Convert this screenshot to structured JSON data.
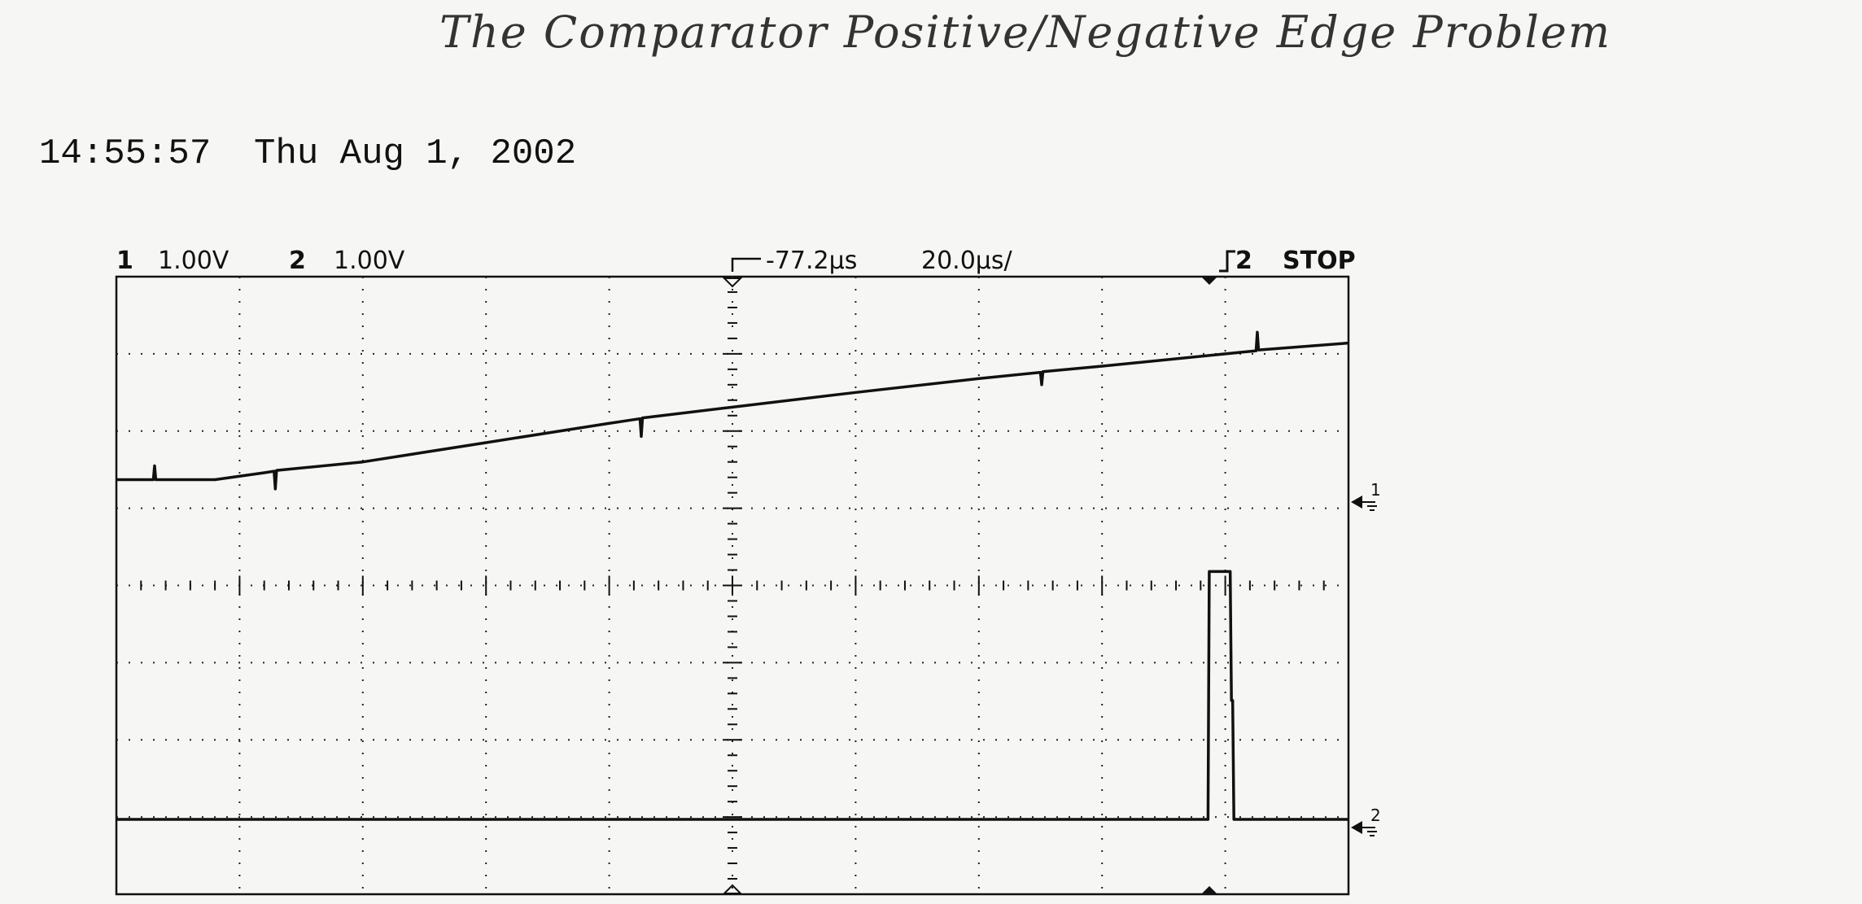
{
  "chart_data": {
    "type": "line",
    "title": "The Comparator Positive/Negative Edge Problem",
    "timestamp": "14:55:57  Thu Aug 1, 2002",
    "channel_scales": [
      "1.00V",
      "1.00V"
    ],
    "trigger_delay": "-77.2µs",
    "time_per_division": "20.0µs/",
    "trigger_source": "2",
    "run_state": "STOP",
    "xlim": [
      0,
      10
    ],
    "ylim": [
      -4,
      4
    ],
    "grid": true,
    "series": [
      {
        "name": "1",
        "color": "#111111",
        "x": [
          0,
          0.3,
          0.31,
          0.32,
          0.8,
          1.2,
          1.28,
          1.29,
          1.3,
          2,
          3,
          4,
          4.25,
          4.26,
          4.27,
          5,
          6,
          7,
          7.5,
          7.51,
          7.52,
          8,
          9,
          9.25,
          9.26,
          9.27,
          10
        ],
        "values": [
          1.37,
          1.37,
          1.55,
          1.37,
          1.37,
          1.46,
          1.48,
          1.25,
          1.49,
          1.6,
          1.85,
          2.1,
          2.16,
          1.93,
          2.17,
          2.31,
          2.5,
          2.68,
          2.76,
          2.6,
          2.77,
          2.84,
          3.0,
          3.04,
          3.28,
          3.05,
          3.14
        ]
      },
      {
        "name": "2",
        "color": "#111111",
        "x": [
          0,
          8.86,
          8.87,
          9.04,
          9.05,
          9.06,
          9.07,
          10
        ],
        "values": [
          -3.03,
          -3.03,
          0.18,
          0.18,
          -1.49,
          -1.49,
          -3.03,
          -3.03
        ]
      }
    ]
  }
}
